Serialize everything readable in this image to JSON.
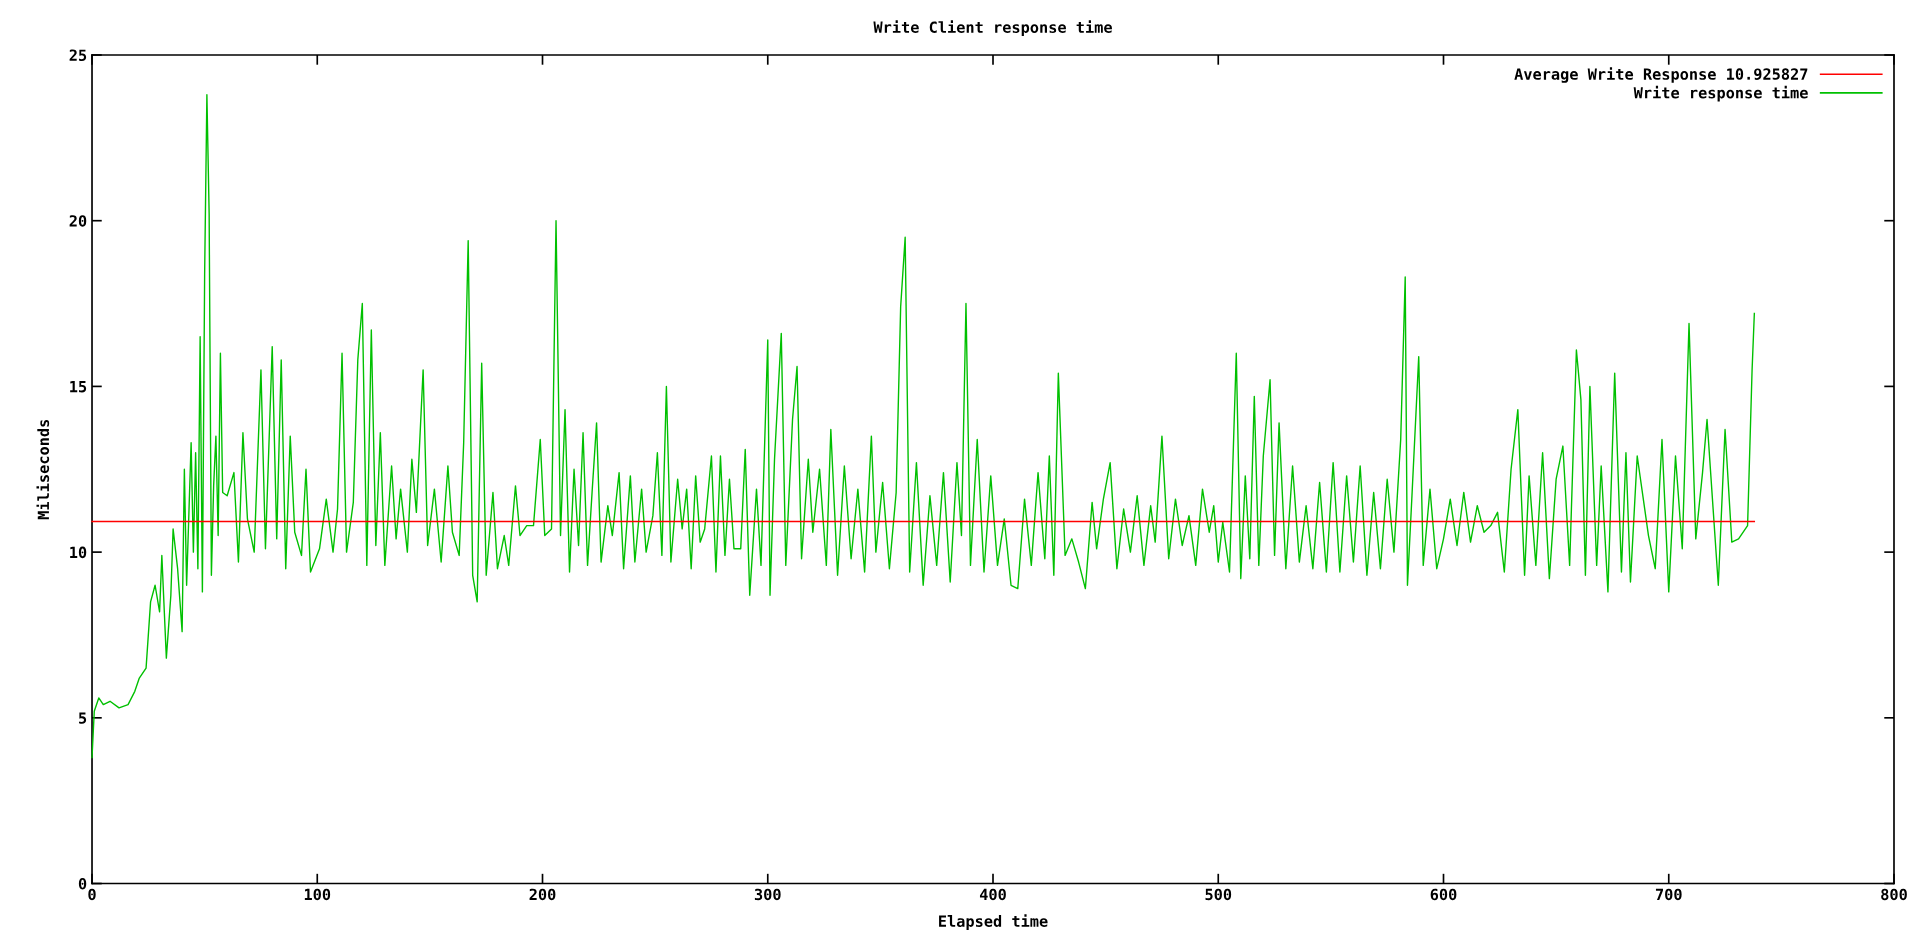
{
  "chart_data": {
    "type": "line",
    "title": "Write Client response time",
    "xlabel": "Elapsed time",
    "ylabel": "Miliseconds",
    "xlim": [
      0,
      800
    ],
    "xticks": [
      0,
      100,
      200,
      300,
      400,
      500,
      600,
      700,
      800
    ],
    "ylim": [
      0,
      25
    ],
    "yticks": [
      0,
      5,
      10,
      15,
      20,
      25
    ],
    "legend": "top right",
    "grid": false,
    "marker": "none",
    "line_style": "solid",
    "series": [
      {
        "name": "Average Write Response 10.925827",
        "color": "#ff0000",
        "x": [
          0,
          738
        ],
        "values": [
          10.925827,
          10.925827
        ]
      },
      {
        "name": "Write response time",
        "color": "#00c000",
        "x": [
          0,
          1,
          3,
          5,
          8,
          12,
          16,
          19,
          21,
          24,
          26,
          28,
          30,
          31,
          33,
          35,
          36,
          38,
          40,
          41,
          42,
          44,
          45,
          46,
          47,
          48,
          49,
          50,
          51,
          52,
          53,
          54,
          55,
          56,
          57,
          58,
          60,
          63,
          65,
          67,
          69,
          72,
          75,
          77,
          80,
          82,
          84,
          86,
          88,
          90,
          93,
          95,
          97,
          101,
          104,
          107,
          109,
          111,
          113,
          116,
          118,
          120,
          122,
          124,
          126,
          128,
          130,
          133,
          135,
          137,
          140,
          142,
          144,
          147,
          149,
          152,
          155,
          158,
          160,
          163,
          165,
          167,
          169,
          171,
          173,
          175,
          178,
          180,
          183,
          185,
          188,
          190,
          193,
          196,
          199,
          201,
          204,
          206,
          208,
          210,
          212,
          214,
          216,
          218,
          220,
          222,
          224,
          226,
          229,
          231,
          234,
          236,
          239,
          241,
          244,
          246,
          249,
          251,
          253,
          255,
          257,
          260,
          262,
          264,
          266,
          268,
          270,
          272,
          275,
          277,
          279,
          281,
          283,
          285,
          288,
          290,
          292,
          295,
          297,
          300,
          301,
          303,
          306,
          308,
          311,
          313,
          315,
          318,
          320,
          323,
          326,
          328,
          331,
          334,
          337,
          340,
          343,
          346,
          348,
          351,
          354,
          357,
          359,
          361,
          363,
          366,
          369,
          372,
          375,
          378,
          381,
          384,
          386,
          388,
          390,
          393,
          396,
          399,
          402,
          405,
          408,
          411,
          414,
          417,
          420,
          423,
          425,
          427,
          429,
          432,
          435,
          438,
          441,
          444,
          446,
          449,
          452,
          455,
          458,
          461,
          464,
          467,
          470,
          472,
          475,
          478,
          481,
          484,
          487,
          490,
          493,
          496,
          498,
          500,
          502,
          505,
          508,
          510,
          512,
          514,
          516,
          518,
          520,
          523,
          525,
          527,
          530,
          533,
          536,
          539,
          542,
          545,
          548,
          551,
          554,
          557,
          560,
          563,
          566,
          569,
          572,
          575,
          578,
          581,
          583,
          584,
          586,
          589,
          591,
          594,
          597,
          600,
          603,
          606,
          609,
          612,
          615,
          618,
          621,
          624,
          627,
          630,
          633,
          636,
          638,
          641,
          644,
          647,
          650,
          653,
          656,
          659,
          661,
          663,
          665,
          668,
          670,
          673,
          676,
          679,
          681,
          683,
          686,
          691,
          694,
          697,
          700,
          703,
          706,
          709,
          712,
          715,
          717,
          722,
          725,
          728,
          731,
          735,
          737,
          738
        ],
        "values": [
          3.8,
          5.2,
          5.6,
          5.4,
          5.5,
          5.3,
          5.4,
          5.8,
          6.2,
          6.5,
          8.5,
          9.0,
          8.2,
          9.9,
          6.8,
          8.7,
          10.7,
          9.5,
          7.6,
          12.5,
          9.0,
          13.3,
          10.0,
          13.0,
          9.5,
          16.5,
          8.8,
          18.4,
          23.8,
          20.2,
          9.3,
          12.0,
          13.5,
          10.5,
          16.0,
          11.8,
          11.7,
          12.4,
          9.7,
          13.6,
          11.0,
          10.0,
          15.5,
          10.1,
          16.2,
          10.4,
          15.8,
          9.5,
          13.5,
          10.6,
          9.9,
          12.5,
          9.4,
          10.1,
          11.6,
          10.0,
          11.3,
          16.0,
          10.0,
          11.5,
          15.8,
          17.5,
          9.6,
          16.7,
          10.2,
          13.6,
          9.6,
          12.6,
          10.4,
          11.9,
          10.0,
          12.8,
          11.2,
          15.5,
          10.2,
          11.9,
          9.7,
          12.6,
          10.6,
          9.9,
          13.3,
          19.4,
          9.3,
          8.5,
          15.7,
          9.3,
          11.8,
          9.5,
          10.5,
          9.6,
          12.0,
          10.5,
          10.8,
          10.8,
          13.4,
          10.5,
          10.7,
          20.0,
          10.5,
          14.3,
          9.4,
          12.5,
          10.2,
          13.6,
          9.6,
          11.8,
          13.9,
          9.7,
          11.4,
          10.5,
          12.4,
          9.5,
          12.3,
          9.7,
          11.9,
          10.0,
          11.1,
          13.0,
          9.9,
          15.0,
          9.7,
          12.2,
          10.7,
          11.9,
          9.5,
          12.3,
          10.3,
          10.7,
          12.9,
          9.4,
          12.9,
          9.9,
          12.2,
          10.1,
          10.1,
          13.1,
          8.7,
          11.9,
          9.6,
          16.4,
          8.7,
          12.8,
          16.6,
          9.6,
          14.0,
          15.6,
          9.8,
          12.8,
          10.6,
          12.5,
          9.6,
          13.7,
          9.3,
          12.6,
          9.8,
          11.9,
          9.4,
          13.5,
          10.0,
          12.1,
          9.5,
          11.8,
          17.4,
          19.5,
          9.4,
          12.7,
          9.0,
          11.7,
          9.6,
          12.4,
          9.1,
          12.7,
          10.5,
          17.5,
          9.6,
          13.4,
          9.4,
          12.3,
          9.6,
          11.0,
          9.0,
          8.9,
          11.6,
          9.6,
          12.4,
          9.8,
          12.9,
          9.3,
          15.4,
          9.9,
          10.4,
          9.7,
          8.9,
          11.5,
          10.1,
          11.6,
          12.7,
          9.5,
          11.3,
          10.0,
          11.7,
          9.6,
          11.4,
          10.3,
          13.5,
          9.8,
          11.6,
          10.2,
          11.1,
          9.6,
          11.9,
          10.6,
          11.4,
          9.7,
          10.9,
          9.4,
          16.0,
          9.2,
          12.3,
          9.8,
          14.7,
          9.6,
          12.9,
          15.2,
          9.9,
          13.9,
          9.5,
          12.6,
          9.7,
          11.4,
          9.5,
          12.1,
          9.4,
          12.7,
          9.4,
          12.3,
          9.7,
          12.6,
          9.3,
          11.8,
          9.5,
          12.2,
          10.0,
          13.4,
          18.3,
          9.0,
          11.7,
          15.9,
          9.6,
          11.9,
          9.5,
          10.4,
          11.6,
          10.2,
          11.8,
          10.3,
          11.4,
          10.6,
          10.8,
          11.2,
          9.4,
          12.5,
          14.3,
          9.3,
          12.3,
          9.6,
          13.0,
          9.2,
          12.2,
          13.2,
          9.6,
          16.1,
          14.6,
          9.3,
          15.0,
          9.6,
          12.6,
          8.8,
          15.4,
          9.4,
          13.0,
          9.1,
          12.9,
          10.5,
          9.5,
          13.4,
          8.8,
          12.9,
          10.1,
          16.9,
          10.4,
          12.4,
          14.0,
          9.0,
          13.7,
          10.3,
          10.4,
          10.8,
          15.5,
          17.2
        ]
      }
    ]
  }
}
